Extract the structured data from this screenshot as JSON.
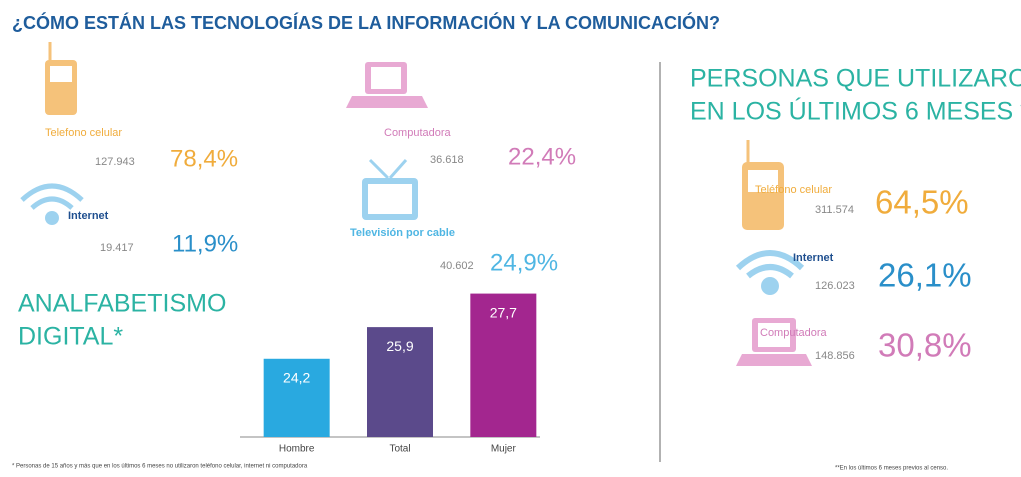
{
  "title": "¿CÓMO ESTÁN LAS TECNOLOGÍAS DE LA INFORMACIÓN  Y  LA COMUNICACIÓN?",
  "left": {
    "phone": {
      "label": "Telefono celular",
      "count": "127.943",
      "percent": "78,4%"
    },
    "computer": {
      "label": "Computadora",
      "count": "36.618",
      "percent": "22,4%"
    },
    "internet": {
      "label": "Internet",
      "count": "19.417",
      "percent": "11,9%"
    },
    "tv": {
      "label": "Televisión por cable",
      "count": "40.602",
      "percent": "24,9%"
    }
  },
  "illiteracy": {
    "line1": "ANALFABETISMO",
    "line2": "DIGITAL*",
    "footnote": "* Personas de 15 años y más que en los últimos 6 meses no utilizaron teléfono celular, internet ni computadora"
  },
  "chart_data": {
    "type": "bar",
    "categories": [
      "Hombre",
      "Total",
      "Mujer"
    ],
    "values": [
      24.2,
      25.9,
      27.7
    ],
    "value_labels": [
      "24,2",
      "25,9",
      "27,7"
    ],
    "colors": [
      "#29a9e0",
      "#5b4a8b",
      "#a3268f"
    ],
    "ylim": [
      20,
      28
    ]
  },
  "right": {
    "title1": "PERSONAS QUE UTILIZARON",
    "title2": "EN LOS ÚLTIMOS 6 MESES **",
    "phone": {
      "label": "Teléfono celular",
      "count": "311.574",
      "percent": "64,5%"
    },
    "internet": {
      "label": "Internet",
      "count": "126.023",
      "percent": "26,1%"
    },
    "computer": {
      "label": "Computadora",
      "count": "148.856",
      "percent": "30,8%"
    },
    "footnote": "**En los últimos 6 meses previos al censo."
  }
}
